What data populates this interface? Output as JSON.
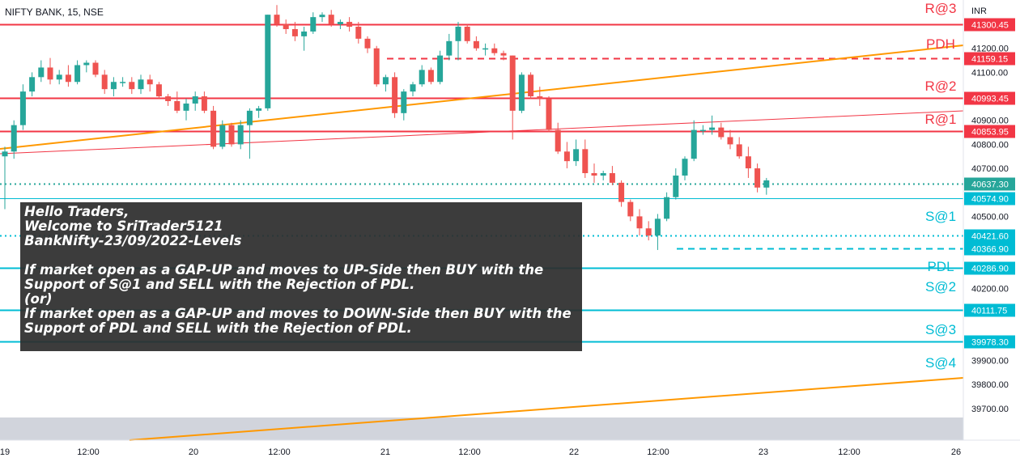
{
  "header": {
    "title": "NIFTY BANK, 15, NSE",
    "currency": "INR"
  },
  "colors": {
    "resistance": "#f23645",
    "support": "#00bcd4",
    "trendline": "#ff9800",
    "candle_up": "#26a69a",
    "candle_down": "#ef5350",
    "price_axis_text": "#131722"
  },
  "note": {
    "lines": [
      "Hello Traders,",
      "Welcome to SriTrader5121",
      "BankNifty-23/09/2022-Levels",
      "",
      "If market open as a GAP-UP and moves to UP-Side then BUY with the",
      "Support of S@1 and SELL with the Rejection of PDL.",
      "(or)",
      "If market open as a GAP-UP and moves to DOWN-Side then BUY with the",
      "Support of PDL and SELL with the Rejection of PDL."
    ]
  },
  "chart_data": {
    "type": "candlestick",
    "title": "NIFTY BANK, 15, NSE",
    "ylim": [
      39630,
      41330
    ],
    "y_ticks": [
      "41200.00",
      "41100.00",
      "40900.00",
      "40800.00",
      "40700.00",
      "40500.00",
      "40200.00",
      "39900.00",
      "39800.00",
      "39700.00"
    ],
    "x_ticks": [
      "19",
      "12:00",
      "20",
      "12:00",
      "21",
      "12:00",
      "22",
      "12:00",
      "23",
      "12:00",
      "26"
    ],
    "levels": [
      {
        "name": "R@3",
        "value": 41300.45,
        "label": "41300.45",
        "color": "#f23645",
        "style": "solid"
      },
      {
        "name": "PDH",
        "value": 41159.15,
        "label": "41159.15",
        "color": "#f23645",
        "style": "dashed"
      },
      {
        "name": "R@2",
        "value": 40993.45,
        "label": "40993.45",
        "color": "#f23645",
        "style": "solid"
      },
      {
        "name": "R@1",
        "value": 40853.95,
        "label": "40853.95",
        "color": "#f23645",
        "style": "solid"
      },
      {
        "name": "",
        "value": 40637.3,
        "label": "40637.30",
        "color": "#26a69a",
        "style": "dotted"
      },
      {
        "name": "S@1",
        "value": 40574.9,
        "label": "40574.90",
        "color": "#00bcd4",
        "style": "solid-thin"
      },
      {
        "name": "",
        "value": 40421.6,
        "label": "40421.60",
        "color": "#00bcd4",
        "style": "dotted"
      },
      {
        "name": "",
        "value": 40366.9,
        "label": "40366.90",
        "color": "#00bcd4",
        "style": "dashed"
      },
      {
        "name": "PDL",
        "value": 40286.9,
        "label": "40286.90",
        "color": "#00bcd4",
        "style": "solid"
      },
      {
        "name": "S@2",
        "value": 40111.75,
        "label": "40111.75",
        "color": "#00bcd4",
        "style": "solid"
      },
      {
        "name": "S@3",
        "value": 39978.3,
        "label": "39978.30",
        "color": "#00bcd4",
        "style": "solid"
      },
      {
        "name": "S@4",
        "value": null,
        "label": "",
        "color": "#00bcd4",
        "style": "none"
      }
    ],
    "candles": [
      {
        "o": 40750,
        "h": 40790,
        "l": 40530,
        "c": 40770
      },
      {
        "o": 40770,
        "h": 40900,
        "l": 40740,
        "c": 40880
      },
      {
        "o": 40880,
        "h": 41050,
        "l": 40860,
        "c": 41020
      },
      {
        "o": 41020,
        "h": 41100,
        "l": 41000,
        "c": 41080
      },
      {
        "o": 41080,
        "h": 41150,
        "l": 41060,
        "c": 41120
      },
      {
        "o": 41120,
        "h": 41160,
        "l": 41050,
        "c": 41070
      },
      {
        "o": 41070,
        "h": 41110,
        "l": 41050,
        "c": 41090
      },
      {
        "o": 41090,
        "h": 41130,
        "l": 41040,
        "c": 41060
      },
      {
        "o": 41060,
        "h": 41150,
        "l": 41050,
        "c": 41130
      },
      {
        "o": 41130,
        "h": 41150,
        "l": 41100,
        "c": 41140
      },
      {
        "o": 41140,
        "h": 41150,
        "l": 41080,
        "c": 41090
      },
      {
        "o": 41090,
        "h": 41110,
        "l": 41010,
        "c": 41030
      },
      {
        "o": 41030,
        "h": 41080,
        "l": 41000,
        "c": 41060
      },
      {
        "o": 41060,
        "h": 41080,
        "l": 41040,
        "c": 41060
      },
      {
        "o": 41060,
        "h": 41080,
        "l": 41010,
        "c": 41030
      },
      {
        "o": 41030,
        "h": 41090,
        "l": 41010,
        "c": 41070
      },
      {
        "o": 41070,
        "h": 41090,
        "l": 41020,
        "c": 41050
      },
      {
        "o": 41050,
        "h": 41060,
        "l": 40990,
        "c": 41000
      },
      {
        "o": 41000,
        "h": 41010,
        "l": 40960,
        "c": 40980
      },
      {
        "o": 40980,
        "h": 41020,
        "l": 40930,
        "c": 40940
      },
      {
        "o": 40940,
        "h": 40990,
        "l": 40900,
        "c": 40970
      },
      {
        "o": 40970,
        "h": 41020,
        "l": 40940,
        "c": 41000
      },
      {
        "o": 41000,
        "h": 41020,
        "l": 40930,
        "c": 40940
      },
      {
        "o": 40940,
        "h": 40960,
        "l": 40780,
        "c": 40790
      },
      {
        "o": 40790,
        "h": 40900,
        "l": 40780,
        "c": 40880
      },
      {
        "o": 40880,
        "h": 40890,
        "l": 40790,
        "c": 40800
      },
      {
        "o": 40800,
        "h": 40900,
        "l": 40780,
        "c": 40880
      },
      {
        "o": 40880,
        "h": 40950,
        "l": 40740,
        "c": 40940
      },
      {
        "o": 40940,
        "h": 40960,
        "l": 40910,
        "c": 40950
      },
      {
        "o": 40950,
        "h": 41340,
        "l": 40940,
        "c": 41340
      },
      {
        "o": 41340,
        "h": 41380,
        "l": 41290,
        "c": 41300
      },
      {
        "o": 41300,
        "h": 41320,
        "l": 41260,
        "c": 41280
      },
      {
        "o": 41280,
        "h": 41310,
        "l": 41230,
        "c": 41250
      },
      {
        "o": 41250,
        "h": 41290,
        "l": 41190,
        "c": 41270
      },
      {
        "o": 41270,
        "h": 41350,
        "l": 41260,
        "c": 41330
      },
      {
        "o": 41330,
        "h": 41350,
        "l": 41310,
        "c": 41340
      },
      {
        "o": 41340,
        "h": 41360,
        "l": 41290,
        "c": 41300
      },
      {
        "o": 41300,
        "h": 41320,
        "l": 41280,
        "c": 41310
      },
      {
        "o": 41310,
        "h": 41330,
        "l": 41270,
        "c": 41290
      },
      {
        "o": 41290,
        "h": 41310,
        "l": 41220,
        "c": 41240
      },
      {
        "o": 41240,
        "h": 41250,
        "l": 41180,
        "c": 41200
      },
      {
        "o": 41200,
        "h": 41210,
        "l": 41040,
        "c": 41050
      },
      {
        "o": 41050,
        "h": 41090,
        "l": 41020,
        "c": 41080
      },
      {
        "o": 41080,
        "h": 41100,
        "l": 40910,
        "c": 40930
      },
      {
        "o": 40930,
        "h": 41030,
        "l": 40900,
        "c": 41020
      },
      {
        "o": 41020,
        "h": 41060,
        "l": 41000,
        "c": 41050
      },
      {
        "o": 41050,
        "h": 41130,
        "l": 41040,
        "c": 41110
      },
      {
        "o": 41110,
        "h": 41120,
        "l": 41050,
        "c": 41060
      },
      {
        "o": 41060,
        "h": 41190,
        "l": 41050,
        "c": 41170
      },
      {
        "o": 41170,
        "h": 41260,
        "l": 41150,
        "c": 41230
      },
      {
        "o": 41230,
        "h": 41310,
        "l": 41150,
        "c": 41290
      },
      {
        "o": 41290,
        "h": 41300,
        "l": 41220,
        "c": 41230
      },
      {
        "o": 41230,
        "h": 41250,
        "l": 41190,
        "c": 41200
      },
      {
        "o": 41200,
        "h": 41220,
        "l": 41170,
        "c": 41200
      },
      {
        "o": 41200,
        "h": 41220,
        "l": 41170,
        "c": 41180
      },
      {
        "o": 41180,
        "h": 41190,
        "l": 41150,
        "c": 41170
      },
      {
        "o": 41170,
        "h": 41170,
        "l": 40820,
        "c": 40940
      },
      {
        "o": 40940,
        "h": 41100,
        "l": 40930,
        "c": 41090
      },
      {
        "o": 41090,
        "h": 41100,
        "l": 40990,
        "c": 41000
      },
      {
        "o": 41000,
        "h": 41040,
        "l": 40960,
        "c": 40990
      },
      {
        "o": 40990,
        "h": 41000,
        "l": 40850,
        "c": 40860
      },
      {
        "o": 40860,
        "h": 40890,
        "l": 40760,
        "c": 40770
      },
      {
        "o": 40770,
        "h": 40810,
        "l": 40700,
        "c": 40730
      },
      {
        "o": 40730,
        "h": 40820,
        "l": 40710,
        "c": 40780
      },
      {
        "o": 40780,
        "h": 40820,
        "l": 40660,
        "c": 40680
      },
      {
        "o": 40680,
        "h": 40720,
        "l": 40640,
        "c": 40670
      },
      {
        "o": 40670,
        "h": 40690,
        "l": 40650,
        "c": 40680
      },
      {
        "o": 40680,
        "h": 40710,
        "l": 40630,
        "c": 40640
      },
      {
        "o": 40640,
        "h": 40650,
        "l": 40540,
        "c": 40560
      },
      {
        "o": 40560,
        "h": 40570,
        "l": 40480,
        "c": 40500
      },
      {
        "o": 40500,
        "h": 40530,
        "l": 40420,
        "c": 40450
      },
      {
        "o": 40450,
        "h": 40480,
        "l": 40400,
        "c": 40420
      },
      {
        "o": 40420,
        "h": 40510,
        "l": 40360,
        "c": 40490
      },
      {
        "o": 40490,
        "h": 40600,
        "l": 40480,
        "c": 40580
      },
      {
        "o": 40580,
        "h": 40700,
        "l": 40570,
        "c": 40670
      },
      {
        "o": 40670,
        "h": 40750,
        "l": 40650,
        "c": 40740
      },
      {
        "o": 40740,
        "h": 40900,
        "l": 40730,
        "c": 40860
      },
      {
        "o": 40860,
        "h": 40880,
        "l": 40840,
        "c": 40860
      },
      {
        "o": 40860,
        "h": 40920,
        "l": 40840,
        "c": 40870
      },
      {
        "o": 40870,
        "h": 40890,
        "l": 40820,
        "c": 40830
      },
      {
        "o": 40830,
        "h": 40860,
        "l": 40780,
        "c": 40800
      },
      {
        "o": 40800,
        "h": 40830,
        "l": 40740,
        "c": 40750
      },
      {
        "o": 40750,
        "h": 40790,
        "l": 40660,
        "c": 40700
      },
      {
        "o": 40700,
        "h": 40720,
        "l": 40600,
        "c": 40620
      },
      {
        "o": 40620,
        "h": 40660,
        "l": 40590,
        "c": 40650
      }
    ]
  }
}
